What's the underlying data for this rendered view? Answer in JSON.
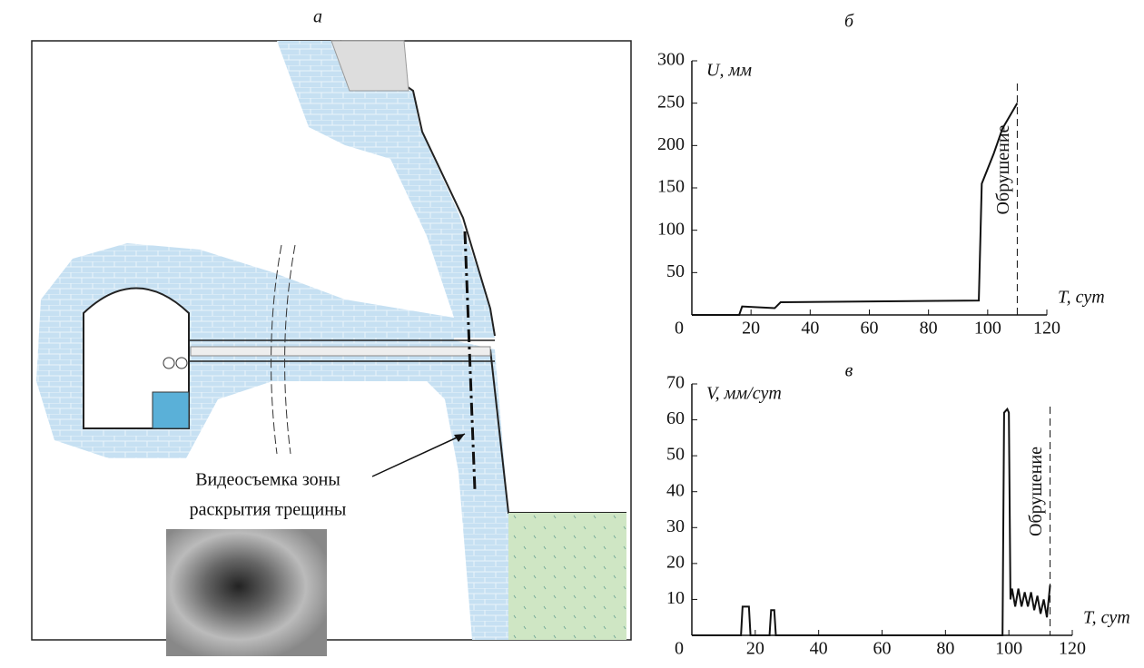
{
  "diagram": {
    "label": "а",
    "annotation": [
      "Видеосъемка зоны",
      "раскрытия трещины"
    ]
  },
  "chart_data": [
    {
      "type": "line",
      "label": "б",
      "y_label": "U, мм",
      "x_label": "T, сут",
      "annotation": "Обрушение",
      "collapse_x": 110,
      "x": [
        0,
        16,
        17,
        28,
        30,
        97,
        98,
        102,
        105,
        110
      ],
      "values": [
        0,
        0,
        10,
        8,
        15,
        17,
        155,
        190,
        220,
        250
      ],
      "color": "#111",
      "xlim": [
        0,
        120
      ],
      "xticks": [
        0,
        20,
        40,
        60,
        80,
        100,
        120
      ],
      "ylim": [
        0,
        300
      ],
      "yticks": [
        50,
        100,
        150,
        200,
        250,
        300
      ]
    },
    {
      "type": "line",
      "label": "в",
      "y_label": "V, мм/сут",
      "x_label": "T, сут",
      "annotation": "Обрушение",
      "collapse_x": 113,
      "x": [
        0,
        15.5,
        16,
        17,
        18,
        18.5,
        24.5,
        25,
        26,
        26.5,
        98,
        98.5,
        99.5,
        100,
        100.5,
        101,
        102,
        103,
        104,
        105,
        106,
        107,
        108,
        109,
        110,
        111,
        112,
        113
      ],
      "values": [
        0,
        0,
        8,
        8,
        8,
        0,
        0,
        7,
        7,
        0,
        0,
        62,
        63,
        62,
        10,
        13,
        8,
        13,
        8,
        12,
        8,
        12,
        7,
        11,
        6,
        10,
        5,
        14
      ],
      "color": "#111",
      "xlim": [
        0,
        120
      ],
      "xticks": [
        0,
        20,
        40,
        60,
        80,
        100,
        120
      ],
      "ylim": [
        0,
        70
      ],
      "yticks": [
        10,
        20,
        30,
        40,
        50,
        60,
        70
      ]
    }
  ]
}
